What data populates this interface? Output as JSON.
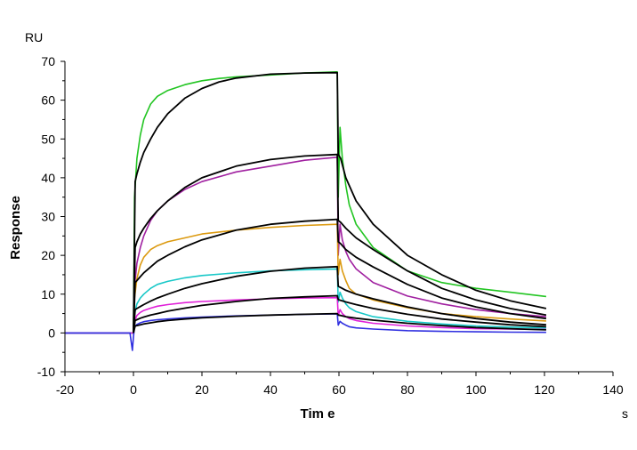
{
  "chart_data": {
    "type": "line",
    "title": "",
    "xlabel": "Tim e",
    "ylabel": "Response",
    "x_unit": "s",
    "y_unit": "RU",
    "xlim": [
      -20,
      140
    ],
    "ylim": [
      -10,
      70
    ],
    "x_ticks": [
      -20,
      0,
      20,
      40,
      60,
      80,
      100,
      120,
      140
    ],
    "y_ticks": [
      -10,
      0,
      10,
      20,
      30,
      40,
      50,
      60,
      70
    ],
    "grid": false,
    "legend": "none",
    "series": [
      {
        "color": "#22c522",
        "x": [
          -20,
          -1,
          0,
          0.3,
          1,
          2,
          3,
          5,
          7,
          10,
          15,
          20,
          25,
          30,
          40,
          50,
          59.5,
          59.8,
          60.3,
          61,
          62,
          63,
          65,
          70,
          80,
          90,
          100,
          110,
          120.5
        ],
        "y": [
          0,
          0,
          0,
          35,
          45,
          51,
          55,
          59,
          61,
          62.5,
          64,
          65,
          65.6,
          66,
          66.5,
          67,
          67.3,
          35,
          53,
          45,
          38,
          33,
          28,
          22,
          16,
          13,
          11.5,
          10.5,
          9.4
        ]
      },
      {
        "color": "#a020a0",
        "x": [
          -20,
          -1,
          0,
          0.3,
          1,
          2,
          3,
          5,
          7,
          10,
          15,
          20,
          30,
          40,
          50,
          59.5,
          59.8,
          60.3,
          61,
          62,
          63,
          65,
          70,
          80,
          90,
          100,
          110,
          120.5
        ],
        "y": [
          0,
          0,
          0,
          12,
          18,
          22,
          25,
          29,
          31.5,
          34,
          37,
          39,
          41.5,
          43,
          44.5,
          45.3,
          20,
          28,
          24,
          21,
          19,
          16.5,
          13,
          9.5,
          7.5,
          6,
          5,
          4.2
        ]
      },
      {
        "color": "#dc9a10",
        "x": [
          -20,
          -1,
          0,
          0.3,
          1,
          2,
          3,
          5,
          7,
          10,
          15,
          20,
          30,
          40,
          50,
          59.5,
          59.8,
          60.3,
          61,
          62,
          63,
          65,
          70,
          80,
          90,
          100,
          110,
          120.5
        ],
        "y": [
          0,
          0,
          0,
          9,
          14,
          17.5,
          19.5,
          21.5,
          22.5,
          23.5,
          24.5,
          25.5,
          26.5,
          27.2,
          27.7,
          28,
          15,
          19,
          16,
          13.5,
          11.5,
          10,
          8.5,
          6.5,
          5,
          4.2,
          3.6,
          3.1
        ]
      },
      {
        "color": "#18c8c8",
        "x": [
          -20,
          -1,
          0,
          0.3,
          1,
          2,
          3,
          5,
          7,
          10,
          15,
          20,
          30,
          40,
          50,
          59.5,
          59.8,
          60.3,
          61,
          62,
          63,
          65,
          70,
          80,
          90,
          100,
          110,
          120.5
        ],
        "y": [
          0,
          0,
          0,
          5,
          7.5,
          9,
          10,
          11.5,
          12.5,
          13.3,
          14.2,
          14.8,
          15.5,
          16,
          16.3,
          16.5,
          8,
          10.5,
          9,
          7.5,
          6.5,
          5.5,
          4.2,
          3,
          2.3,
          1.8,
          1.5,
          1.3
        ]
      },
      {
        "color": "#e020d8",
        "x": [
          -20,
          -1,
          0,
          0.3,
          1,
          2,
          3,
          5,
          7,
          10,
          15,
          20,
          30,
          40,
          50,
          59.5,
          59.8,
          60.3,
          61,
          62,
          63,
          65,
          70,
          80,
          90,
          100,
          110,
          120.5
        ],
        "y": [
          0,
          0,
          0,
          3,
          4.5,
          5.3,
          5.8,
          6.4,
          6.9,
          7.3,
          7.8,
          8.1,
          8.5,
          8.8,
          9,
          9.1,
          4.5,
          6,
          5,
          4.2,
          3.7,
          3.2,
          2.5,
          1.8,
          1.4,
          1.1,
          1,
          0.9
        ]
      },
      {
        "color": "#3030e0",
        "x": [
          -20,
          -1,
          -0.3,
          0,
          0.3,
          1,
          2,
          3,
          5,
          7,
          10,
          15,
          20,
          30,
          40,
          50,
          59.5,
          59.8,
          60.3,
          61,
          62,
          63,
          65,
          70,
          80,
          90,
          100,
          110,
          120.5
        ],
        "y": [
          0,
          0,
          -4.5,
          -1,
          1.5,
          2.2,
          2.6,
          2.9,
          3.2,
          3.4,
          3.6,
          3.9,
          4.1,
          4.4,
          4.6,
          4.8,
          4.9,
          2,
          3,
          2.5,
          2,
          1.6,
          1.3,
          1,
          0.6,
          0.4,
          0.3,
          0.2,
          0.15
        ]
      },
      {
        "color": "#000000",
        "x": [
          0,
          0.5,
          1,
          2,
          3,
          5,
          7,
          10,
          15,
          20,
          25,
          30,
          40,
          50,
          59.5,
          59.8,
          60.5,
          62,
          65,
          70,
          80,
          90,
          100,
          110,
          120.5
        ],
        "y": [
          0,
          39,
          41,
          44,
          46.5,
          50,
          53,
          56.5,
          60.5,
          63,
          64.7,
          65.7,
          66.7,
          67,
          67.1,
          46,
          45,
          40,
          34,
          28,
          20,
          15,
          11,
          8.3,
          6.3
        ]
      },
      {
        "color": "#000000",
        "x": [
          0,
          0.5,
          1,
          2,
          3,
          5,
          7,
          10,
          15,
          20,
          30,
          40,
          50,
          59.5,
          59.8,
          60.5,
          62,
          65,
          70,
          80,
          90,
          100,
          110,
          120.5
        ],
        "y": [
          0,
          22,
          23.5,
          25.5,
          27,
          29.5,
          31.5,
          34,
          37.5,
          40,
          43,
          44.7,
          45.6,
          46,
          29,
          28.5,
          27,
          24.5,
          21.5,
          16,
          11.5,
          8.5,
          6.3,
          4.6
        ]
      },
      {
        "color": "#000000",
        "x": [
          0,
          0.5,
          1,
          2,
          3,
          5,
          7,
          10,
          15,
          20,
          30,
          40,
          50,
          59.5,
          59.8,
          60.5,
          62,
          65,
          70,
          80,
          90,
          100,
          110,
          120.5
        ],
        "y": [
          0,
          13,
          13.5,
          14.5,
          15.5,
          17,
          18.5,
          20,
          22.2,
          24,
          26.5,
          28,
          28.8,
          29.3,
          23.5,
          23,
          21.5,
          19.5,
          17,
          12.5,
          9,
          6.7,
          5,
          3.7
        ]
      },
      {
        "color": "#000000",
        "x": [
          0,
          0.5,
          1,
          2,
          3,
          5,
          7,
          10,
          15,
          20,
          30,
          40,
          50,
          59.5,
          59.8,
          60.5,
          62,
          65,
          70,
          80,
          90,
          100,
          110,
          120.5
        ],
        "y": [
          0,
          6,
          6.3,
          6.8,
          7.3,
          8.2,
          9,
          10,
          11.5,
          12.7,
          14.6,
          15.9,
          16.7,
          17.1,
          12,
          11.7,
          11,
          10,
          8.8,
          6.7,
          5,
          3.7,
          2.8,
          2.1
        ]
      },
      {
        "color": "#000000",
        "x": [
          0,
          0.5,
          1,
          2,
          3,
          5,
          7,
          10,
          15,
          20,
          30,
          40,
          50,
          59.5,
          59.8,
          60.5,
          62,
          65,
          70,
          80,
          90,
          100,
          110,
          120.5
        ],
        "y": [
          0,
          3.2,
          3.4,
          3.8,
          4.1,
          4.6,
          5,
          5.6,
          6.4,
          7.1,
          8.1,
          8.9,
          9.3,
          9.6,
          8.6,
          8.4,
          8,
          7.3,
          6.3,
          4.8,
          3.6,
          2.8,
          2.1,
          1.6
        ]
      },
      {
        "color": "#000000",
        "x": [
          0,
          0.5,
          1,
          2,
          3,
          5,
          7,
          10,
          15,
          20,
          30,
          40,
          50,
          59.5,
          59.8,
          60.5,
          62,
          65,
          70,
          80,
          90,
          100,
          110,
          120.5
        ],
        "y": [
          0,
          1.8,
          1.9,
          2.1,
          2.3,
          2.6,
          2.9,
          3.2,
          3.6,
          3.9,
          4.3,
          4.6,
          4.8,
          5,
          4.6,
          4.5,
          4.2,
          3.8,
          3.3,
          2.5,
          1.9,
          1.4,
          1.1,
          0.8
        ]
      }
    ]
  }
}
